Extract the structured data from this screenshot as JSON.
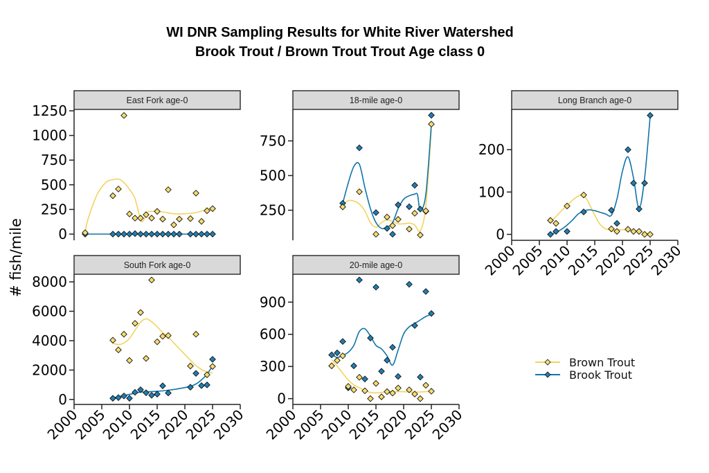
{
  "title": {
    "line1": "WI DNR Sampling Results for White River Watershed",
    "line2": "Brook Trout / Brown Trout Trout Age class 0"
  },
  "chart_data": {
    "type": "scatter",
    "subtype": "faceted scatter with smoothed trend lines",
    "ylabel": "# fish/mile",
    "xlabel": "",
    "xlim": [
      2000,
      2030
    ],
    "xticks": [
      "2000",
      "2005",
      "2010",
      "2015",
      "2020",
      "2025",
      "2030"
    ],
    "legend": {
      "placement": "bottom-right",
      "entries": [
        "Brown Trout",
        "Brook Trout"
      ]
    },
    "colors": {
      "Brown Trout": "#f2d360",
      "Brook Trout": "#0f74a8"
    },
    "grid": false,
    "panels": [
      {
        "id": "east-fork",
        "label": "East Fork age-0",
        "ylim": [
          -63,
          1264
        ],
        "yticks": [
          "0",
          "250",
          "500",
          "750",
          "1000",
          "1250"
        ],
        "show_xaxis": false,
        "series": [
          {
            "name": "Brown Trout",
            "x": [
              2002,
              2007,
              2008,
              2009,
              2010,
              2011,
              2012,
              2013,
              2014,
              2015,
              2016,
              2017,
              2018,
              2019,
              2021,
              2022,
              2023,
              2024,
              2025
            ],
            "y": [
              14,
              389,
              457,
              1203,
              204,
              162,
              162,
              197,
              162,
              230,
              152,
              450,
              94,
              152,
              157,
              415,
              129,
              237,
              258
            ],
            "trend_x": [
              2002,
              2002.5,
              2004,
              2005,
              2006,
              2007,
              2008,
              2009,
              2010,
              2011,
              2012,
              2012.5,
              2013.2,
              2014,
              2016,
              2018,
              2020,
              2022,
              2024,
              2025
            ],
            "trend_y": [
              14,
              148,
              382,
              476,
              535,
              551,
              558,
              523,
              453,
              359,
              148,
              136,
              218,
              230,
              225,
              206,
              206,
              218,
              248,
              255
            ]
          },
          {
            "name": "Brook Trout",
            "x": [
              2002,
              2007,
              2008,
              2009,
              2010,
              2011,
              2012,
              2013,
              2014,
              2015,
              2016,
              2017,
              2018,
              2019,
              2021,
              2022,
              2023,
              2024,
              2025
            ],
            "y": [
              0,
              0,
              0,
              0,
              0,
              5,
              0,
              0,
              0,
              0,
              0,
              0,
              0,
              0,
              0,
              0,
              0,
              0,
              0
            ],
            "trend_x": [
              2002,
              2025
            ],
            "trend_y": [
              0,
              0
            ]
          }
        ]
      },
      {
        "id": "18-mile",
        "label": "18-mile age-0",
        "ylim": [
          33,
          977
        ],
        "yticks": [
          "250",
          "500",
          "750"
        ],
        "show_xaxis": false,
        "series": [
          {
            "name": "Brown Trout",
            "x": [
              2009,
              2012,
              2015,
              2017,
              2018,
              2019,
              2021,
              2022,
              2023,
              2024,
              2025
            ],
            "y": [
              274,
              383,
              77,
              201,
              139,
              184,
              114,
              228,
              71,
              245,
              871
            ],
            "trend_x": [
              2009,
              2010,
              2011,
              2012,
              2013,
              2014,
              2015,
              2016,
              2017,
              2018,
              2019,
              2020,
              2021,
              2022,
              2023,
              2024,
              2025
            ],
            "trend_y": [
              290,
              319,
              316,
              295,
              245,
              161,
              127,
              161,
              181,
              169,
              152,
              152,
              157,
              144,
              102,
              279,
              834
            ]
          },
          {
            "name": "Brook Trout",
            "x": [
              2009,
              2012,
              2015,
              2017,
              2018,
              2019,
              2021,
              2022,
              2023,
              2024,
              2025
            ],
            "y": [
              300,
              700,
              233,
              119,
              77,
              289,
              275,
              430,
              258,
              242,
              935
            ],
            "trend_x": [
              2009,
              2010,
              2011,
              2012,
              2013,
              2014,
              2015,
              2016,
              2017,
              2018,
              2019,
              2020,
              2021,
              2022,
              2022.5,
              2023,
              2024,
              2025
            ],
            "trend_y": [
              300,
              447,
              565,
              582,
              413,
              262,
              161,
              119,
              127,
              161,
              262,
              329,
              354,
              366,
              362,
              253,
              363,
              868
            ]
          }
        ]
      },
      {
        "id": "long-branch",
        "label": "Long Branch age-0",
        "ylim": [
          -14,
          295
        ],
        "yticks": [
          "0",
          "100",
          "200"
        ],
        "show_xaxis": true,
        "series": [
          {
            "name": "Brown Trout",
            "x": [
              2007,
              2008,
              2010,
              2013,
              2018,
              2019,
              2021,
              2022,
              2023,
              2024,
              2025
            ],
            "y": [
              33,
              26,
              67,
              93,
              13,
              7,
              12,
              7,
              7,
              0,
              0
            ],
            "trend_x": [
              2007,
              2009,
              2010,
              2011,
              2012,
              2013,
              2014,
              2015,
              2016,
              2017,
              2018,
              2020,
              2022,
              2024,
              2025
            ],
            "trend_y": [
              28,
              56,
              68,
              81,
              90,
              93,
              72,
              45,
              23,
              13,
              10,
              11,
              9,
              4,
              0
            ]
          },
          {
            "name": "Brook Trout",
            "x": [
              2007,
              2008,
              2010,
              2013,
              2018,
              2019,
              2021,
              2022,
              2023,
              2024,
              2025
            ],
            "y": [
              0,
              7,
              7,
              53,
              57,
              26,
              200,
              121,
              60,
              121,
              281
            ],
            "trend_x": [
              2007,
              2008,
              2009,
              2010,
              2011,
              2012,
              2013,
              2014,
              2015,
              2016,
              2017,
              2018,
              2019,
              2020,
              2021,
              2022,
              2023,
              2024,
              2025
            ],
            "trend_y": [
              0,
              5,
              12,
              22,
              34,
              48,
              55,
              58,
              56,
              52,
              48,
              45,
              83,
              149,
              183,
              133,
              61,
              133,
              278
            ]
          }
        ]
      },
      {
        "id": "south-fork",
        "label": "South Fork age-0",
        "ylim": [
          -340,
          8520
        ],
        "yticks": [
          "0",
          "2000",
          "4000",
          "6000",
          "8000"
        ],
        "show_xaxis": true,
        "series": [
          {
            "name": "Brown Trout",
            "x": [
              2007,
              2008,
              2009,
              2010,
              2011,
              2012,
              2013,
              2014,
              2015,
              2016,
              2017,
              2021,
              2022,
              2024,
              2025
            ],
            "y": [
              4032,
              3373,
              4440,
              2652,
              5178,
              5915,
              2793,
              8127,
              3922,
              4299,
              4346,
              2275,
              4440,
              1679,
              2244
            ],
            "trend_x": [
              2007,
              2008,
              2009,
              2010,
              2011,
              2012,
              2013,
              2014,
              2015,
              2016,
              2017,
              2018,
              2019,
              2020,
              2021,
              2022,
              2023,
              2024,
              2025
            ],
            "trend_y": [
              3830,
              3734,
              3844,
              4158,
              4707,
              5256,
              5492,
              5287,
              4942,
              4550,
              4236,
              3844,
              3452,
              3060,
              2667,
              2306,
              2040,
              1867,
              1804
            ]
          },
          {
            "name": "Brook Trout",
            "x": [
              2007,
              2008,
              2009,
              2010,
              2011,
              2012,
              2013,
              2014,
              2015,
              2016,
              2017,
              2021,
              2022,
              2023,
              2024,
              2025
            ],
            "y": [
              78,
              125,
              235,
              78,
              486,
              659,
              455,
              282,
              361,
              926,
              439,
              832,
              1773,
              941,
              988,
              2730
            ],
            "trend_x": [
              2007,
              2009,
              2011,
              2012,
              2013,
              2015,
              2017,
              2019,
              2021,
              2022,
              2023,
              2024,
              2025
            ],
            "trend_y": [
              110,
              267,
              424,
              502,
              518,
              549,
              628,
              737,
              894,
              1051,
              1334,
              1726,
              2275
            ]
          }
        ]
      },
      {
        "id": "20-mile",
        "label": "20-mile age-0",
        "ylim": [
          -54,
          1160
        ],
        "yticks": [
          "0",
          "300",
          "600",
          "900"
        ],
        "show_xaxis": true,
        "series": [
          {
            "name": "Brown Trout",
            "x": [
              2007,
              2008,
              2009,
              2010,
              2011,
              2012,
              2013,
              2014,
              2015,
              2016,
              2017,
              2018,
              2019,
              2021,
              2022,
              2023,
              2024,
              2025
            ],
            "y": [
              306,
              356,
              399,
              114,
              82,
              199,
              73,
              0,
              142,
              17,
              65,
              52,
              99,
              82,
              43,
              0,
              125,
              69
            ],
            "trend_x": [
              2007,
              2008,
              2009,
              2010,
              2011,
              2012,
              2013,
              2014,
              2015,
              2016,
              2017,
              2018,
              2020,
              2022,
              2024,
              2025
            ],
            "trend_y": [
              363,
              302,
              237,
              173,
              129,
              101,
              76,
              58,
              54,
              58,
              65,
              65,
              65,
              60,
              65,
              71
            ]
          },
          {
            "name": "Brook Trout",
            "x": [
              2007,
              2008,
              2009,
              2010,
              2011,
              2012,
              2013,
              2014,
              2015,
              2016,
              2017,
              2018,
              2019,
              2021,
              2022,
              2023,
              2024,
              2025
            ],
            "y": [
              408,
              427,
              533,
              101,
              306,
              1107,
              183,
              565,
              1040,
              255,
              358,
              479,
              207,
              1066,
              682,
              201,
              999,
              794
            ],
            "trend_x": [
              2007,
              2008,
              2009,
              2010,
              2011,
              2012,
              2013,
              2014,
              2015,
              2016,
              2017,
              2018,
              2019,
              2020,
              2021,
              2022,
              2023,
              2024,
              2025
            ],
            "trend_y": [
              414,
              384,
              404,
              432,
              496,
              626,
              652,
              583,
              496,
              464,
              399,
              313,
              453,
              604,
              669,
              701,
              734,
              766,
              788
            ]
          }
        ]
      }
    ]
  }
}
